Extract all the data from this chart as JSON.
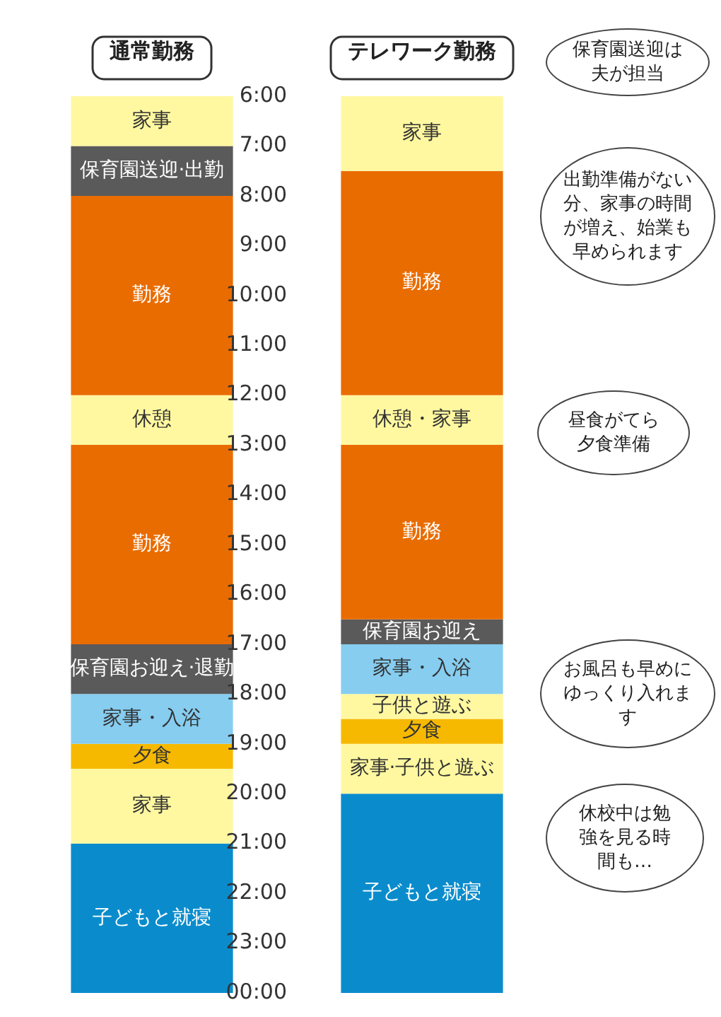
{
  "chart_data": {
    "type": "bar",
    "categories": [
      "通常勤務",
      "テレワーク勤務"
    ],
    "ylim": [
      24,
      6
    ],
    "yticks": [
      {
        "value": 6,
        "label": "6:00"
      },
      {
        "value": 7,
        "label": "7:00"
      },
      {
        "value": 8,
        "label": "8:00"
      },
      {
        "value": 9,
        "label": "9:00"
      },
      {
        "value": 10,
        "label": "10:00"
      },
      {
        "value": 11,
        "label": "11:00"
      },
      {
        "value": 12,
        "label": "12:00"
      },
      {
        "value": 13,
        "label": "13:00"
      },
      {
        "value": 14,
        "label": "14:00"
      },
      {
        "value": 15,
        "label": "15:00"
      },
      {
        "value": 16,
        "label": "16:00"
      },
      {
        "value": 17,
        "label": "17:00"
      },
      {
        "value": 18,
        "label": "18:00"
      },
      {
        "value": 19,
        "label": "19:00"
      },
      {
        "value": 20,
        "label": "20:00"
      },
      {
        "value": 21,
        "label": "21:00"
      },
      {
        "value": 22,
        "label": "22:00"
      },
      {
        "value": 23,
        "label": "23:00"
      },
      {
        "value": 24,
        "label": "00:00"
      }
    ],
    "grid": false,
    "legend": false,
    "series": [
      {
        "name": "家事",
        "color": "#fff8a0",
        "base": [
          6,
          null
        ],
        "values": [
          1,
          null
        ]
      },
      {
        "name": "保育園送迎·出勤",
        "color": "#5a5a5a",
        "base": [
          7,
          null
        ],
        "values": [
          1,
          null
        ]
      },
      {
        "name": "勤務",
        "color": "#e96c00",
        "base": [
          8,
          null
        ],
        "values": [
          4,
          null
        ]
      },
      {
        "name": "休憩",
        "color": "#fff8a0",
        "base": [
          12,
          null
        ],
        "values": [
          1,
          null
        ]
      },
      {
        "name": "勤務",
        "color": "#e96c00",
        "base": [
          13,
          null
        ],
        "values": [
          4,
          null
        ]
      },
      {
        "name": "保育園お迎え·退勤",
        "color": "#5a5a5a",
        "base": [
          17,
          null
        ],
        "values": [
          1,
          null
        ]
      },
      {
        "name": "家事・入浴",
        "color": "#86cdf0",
        "base": [
          18,
          null
        ],
        "values": [
          1,
          null
        ]
      },
      {
        "name": "夕食",
        "color": "#f6b900",
        "base": [
          19,
          null
        ],
        "values": [
          0.5,
          null
        ]
      },
      {
        "name": "家事",
        "color": "#fff8a0",
        "base": [
          19.5,
          null
        ],
        "values": [
          1.5,
          null
        ]
      },
      {
        "name": "子どもと就寝",
        "color": "#0a8ccc",
        "base": [
          21,
          null
        ],
        "values": [
          3,
          null
        ]
      },
      {
        "name": "家事",
        "color": "#fff8a0",
        "base": [
          null,
          6
        ],
        "values": [
          null,
          1.5
        ]
      },
      {
        "name": "勤務",
        "color": "#e96c00",
        "base": [
          null,
          7.5
        ],
        "values": [
          null,
          4.5
        ]
      },
      {
        "name": "休憩・家事",
        "color": "#fff8a0",
        "base": [
          null,
          12
        ],
        "values": [
          null,
          1
        ]
      },
      {
        "name": "勤務",
        "color": "#e96c00",
        "base": [
          null,
          13
        ],
        "values": [
          null,
          3.5
        ]
      },
      {
        "name": "保育園お迎え",
        "color": "#5a5a5a",
        "base": [
          null,
          16.5
        ],
        "values": [
          null,
          0.5
        ]
      },
      {
        "name": "家事・入浴",
        "color": "#86cdf0",
        "base": [
          null,
          17
        ],
        "values": [
          null,
          1
        ]
      },
      {
        "name": "子供と遊ぶ",
        "color": "#fff8a0",
        "base": [
          null,
          18
        ],
        "values": [
          null,
          0.5
        ]
      },
      {
        "name": "夕食",
        "color": "#f6b900",
        "base": [
          null,
          18.5
        ],
        "values": [
          null,
          0.5
        ]
      },
      {
        "name": "家事·子供と遊ぶ",
        "color": "#fff8a0",
        "base": [
          null,
          19
        ],
        "values": [
          null,
          1
        ]
      },
      {
        "name": "子どもと就寝",
        "color": "#0a8ccc",
        "base": [
          null,
          20
        ],
        "values": [
          null,
          4
        ]
      }
    ],
    "annotations": [
      "保育園送迎は夫が担当",
      "出勤準備がない分、家事の時間が増え、始業も早められます",
      "昼食がてら夕食準備",
      "お風呂も早めにゆっくり入れます",
      "休校中は勉強を見る時間も…"
    ]
  }
}
